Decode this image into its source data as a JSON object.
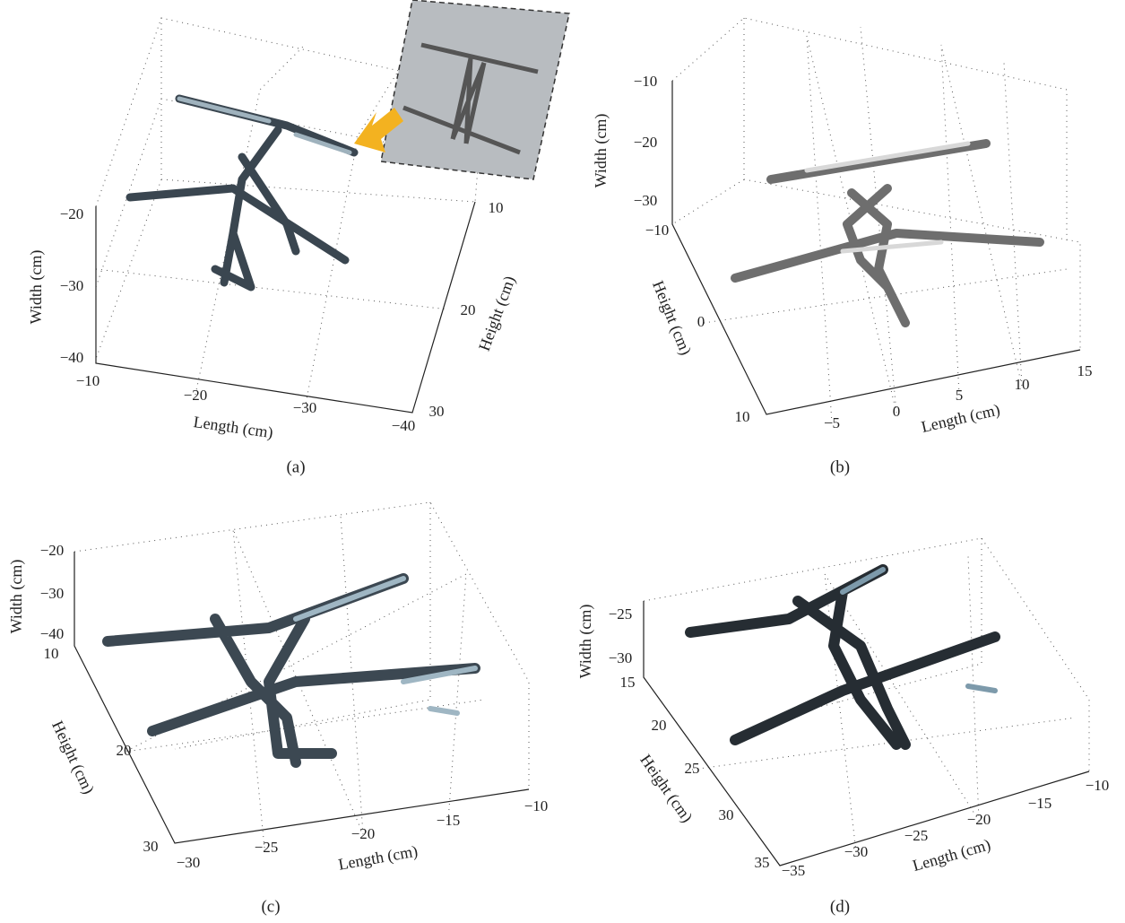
{
  "panels": [
    {
      "caption": "(a)",
      "axes": [
        {
          "label": "Width (cm)",
          "ticks": [
            "−20",
            "−30",
            "−40"
          ]
        },
        {
          "label": "Length (cm)",
          "ticks": [
            "−10",
            "−20",
            "−30",
            "−40"
          ]
        },
        {
          "label": "Height (cm)",
          "ticks": [
            "10",
            "20",
            "30"
          ]
        }
      ]
    },
    {
      "caption": "(b)",
      "axes": [
        {
          "label": "Width (cm)",
          "ticks": [
            "−10",
            "−20",
            "−30"
          ]
        },
        {
          "label": "Height (cm)",
          "ticks": [
            "−10",
            "0",
            "10"
          ]
        },
        {
          "label": "Length (cm)",
          "ticks": [
            "−5",
            "0",
            "5",
            "10",
            "15"
          ]
        }
      ]
    },
    {
      "caption": "(c)",
      "axes": [
        {
          "label": "Width (cm)",
          "ticks": [
            "−20",
            "−30",
            "−40"
          ]
        },
        {
          "label": "Height (cm)",
          "ticks": [
            "10",
            "20",
            "30"
          ]
        },
        {
          "label": "Length (cm)",
          "ticks": [
            "−30",
            "−25",
            "−20",
            "−15",
            "−10"
          ]
        }
      ]
    },
    {
      "caption": "(d)",
      "axes": [
        {
          "label": "Width (cm)",
          "ticks": [
            "−25",
            "−30"
          ]
        },
        {
          "label": "Height (cm)",
          "ticks": [
            "15",
            "20",
            "25",
            "30",
            "35"
          ]
        },
        {
          "label": "Length (cm)",
          "ticks": [
            "−35",
            "−30",
            "−25",
            "−20",
            "−15",
            "−10"
          ]
        }
      ]
    }
  ]
}
